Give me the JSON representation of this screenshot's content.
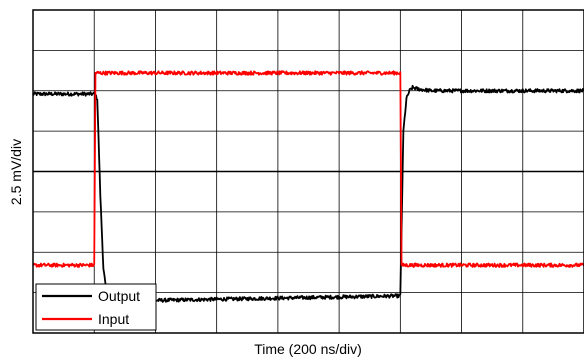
{
  "chart_data": {
    "type": "line",
    "xlabel": "Time (200 ns/div)",
    "ylabel": "2.5 mV/div",
    "x_unit": "ns",
    "x_per_div": 200,
    "y_per_div": 2.5,
    "xlim": [
      0,
      1800
    ],
    "ylim": [
      -10,
      10
    ],
    "grid": true,
    "legend_position": "bottom-left",
    "series": [
      {
        "name": "Output",
        "color": "#000000",
        "x": [
          0,
          200,
          210,
          220,
          230,
          240,
          250,
          260,
          280,
          350,
          1200,
          1210,
          1220,
          1230,
          1240,
          1260,
          1300,
          1800
        ],
        "y": [
          4.8,
          4.8,
          4.5,
          -1.5,
          -6.0,
          -7.5,
          -8.2,
          -8.3,
          -8.2,
          -8.0,
          -7.7,
          2.5,
          4.5,
          5.0,
          5.2,
          5.1,
          5.0,
          5.0
        ]
      },
      {
        "name": "Input",
        "color": "#ff0000",
        "x": [
          0,
          200,
          204,
          1200,
          1204,
          1800
        ],
        "y": [
          -5.8,
          -5.8,
          6.1,
          6.1,
          -5.8,
          -5.8
        ]
      }
    ]
  }
}
